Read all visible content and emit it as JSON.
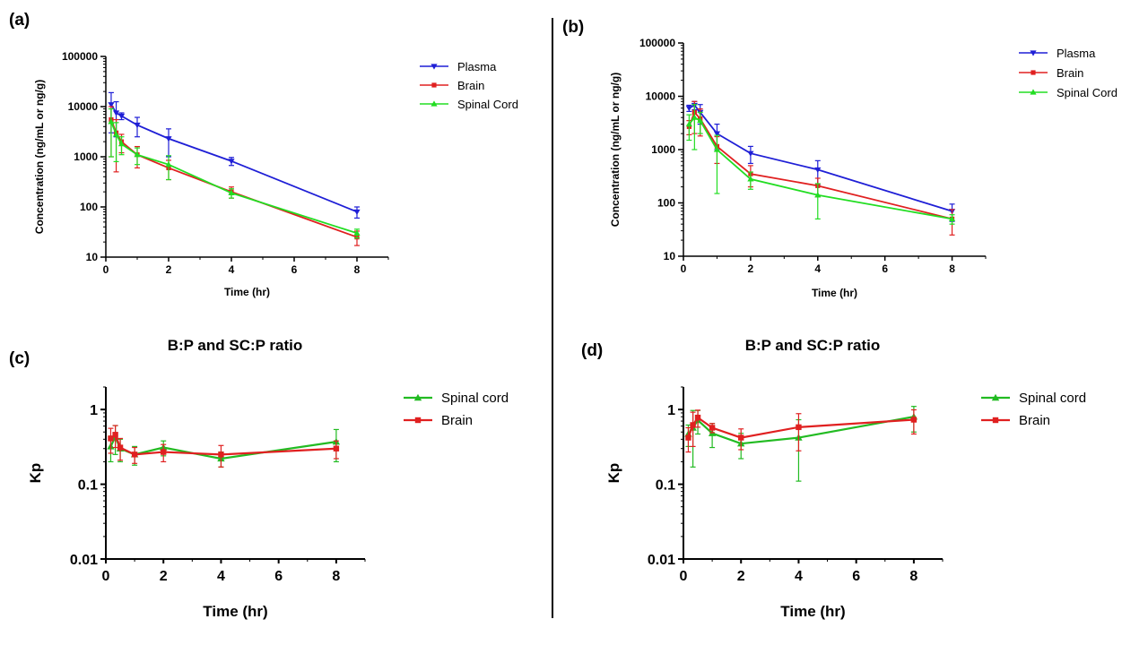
{
  "chart_data": [
    {
      "panel": "(a)",
      "type": "line",
      "title": "",
      "xlabel": "Time (hr)",
      "ylabel": "Concentration (ng/mL or ng/g)",
      "yscale": "log",
      "xlim": [
        0,
        9
      ],
      "ylim": [
        10,
        100000
      ],
      "xticks": [
        "0",
        "2",
        "4",
        "6",
        "8"
      ],
      "yticks": [
        "10",
        "100",
        "1000",
        "10000",
        "100000"
      ],
      "legend_position": "top-right",
      "series": [
        {
          "name": "Plasma",
          "color": "#1f1fd6",
          "marker": "triangle-down",
          "x": [
            0.17,
            0.33,
            0.5,
            1,
            2,
            4,
            8
          ],
          "y": [
            11000,
            7500,
            6500,
            4300,
            2300,
            820,
            80
          ],
          "err": [
            8000,
            5000,
            1000,
            1800,
            1300,
            150,
            20
          ]
        },
        {
          "name": "Brain",
          "color": "#e02020",
          "marker": "square",
          "x": [
            0.17,
            0.33,
            0.5,
            1,
            2,
            4,
            8
          ],
          "y": [
            5500,
            3000,
            2000,
            1100,
            600,
            200,
            25
          ],
          "err": [
            4500,
            2500,
            800,
            500,
            250,
            50,
            8
          ]
        },
        {
          "name": "Spinal Cord",
          "color": "#22dd22",
          "marker": "triangle-up",
          "x": [
            0.17,
            0.33,
            0.5,
            1,
            2,
            4,
            8
          ],
          "y": [
            5000,
            2800,
            1800,
            1100,
            700,
            190,
            30
          ],
          "err": [
            4000,
            2000,
            700,
            400,
            350,
            40,
            6
          ]
        }
      ]
    },
    {
      "panel": "(b)",
      "type": "line",
      "title": "",
      "xlabel": "Time (hr)",
      "ylabel": "Concentration (ng/mL or ng/g)",
      "yscale": "log",
      "xlim": [
        0,
        9
      ],
      "ylim": [
        10,
        100000
      ],
      "xticks": [
        "0",
        "2",
        "4",
        "6",
        "8"
      ],
      "yticks": [
        "10",
        "100",
        "1000",
        "10000",
        "100000"
      ],
      "legend_position": "top-right",
      "series": [
        {
          "name": "Plasma",
          "color": "#1f1fd6",
          "marker": "triangle-down",
          "x": [
            0.17,
            0.33,
            0.5,
            1,
            2,
            4,
            8
          ],
          "y": [
            6000,
            6800,
            5000,
            2000,
            850,
            420,
            70
          ],
          "err": [
            800,
            1200,
            2000,
            1000,
            300,
            200,
            25
          ]
        },
        {
          "name": "Brain",
          "color": "#e02020",
          "marker": "square",
          "x": [
            0.17,
            0.33,
            0.5,
            1,
            2,
            4,
            8
          ],
          "y": [
            2700,
            5000,
            3800,
            1150,
            350,
            210,
            50
          ],
          "err": [
            800,
            3000,
            2000,
            600,
            150,
            80,
            25
          ]
        },
        {
          "name": "Spinal Cord",
          "color": "#22dd22",
          "marker": "triangle-up",
          "x": [
            0.17,
            0.33,
            0.5,
            1,
            2,
            4,
            8
          ],
          "y": [
            3000,
            4000,
            3500,
            1000,
            280,
            140,
            50
          ],
          "err": [
            1500,
            3000,
            1500,
            850,
            100,
            90,
            10
          ]
        }
      ]
    },
    {
      "panel": "(c)",
      "type": "line",
      "title": "B:P and SC:P ratio",
      "xlabel": "Time (hr)",
      "ylabel": "Kp",
      "yscale": "log",
      "xlim": [
        0,
        9
      ],
      "ylim": [
        0.01,
        2
      ],
      "xticks": [
        "0",
        "2",
        "4",
        "6",
        "8"
      ],
      "yticks": [
        "0.01",
        "0.1",
        "1"
      ],
      "legend_position": "top-right",
      "series": [
        {
          "name": "Spinal cord",
          "color": "#22bb22",
          "marker": "triangle-up",
          "x": [
            0.17,
            0.33,
            0.5,
            1,
            2,
            4,
            8
          ],
          "y": [
            0.32,
            0.43,
            0.3,
            0.25,
            0.31,
            0.22,
            0.37
          ],
          "err": [
            0.12,
            0.18,
            0.1,
            0.07,
            0.07,
            0.05,
            0.17
          ]
        },
        {
          "name": "Brain",
          "color": "#e02020",
          "marker": "square",
          "x": [
            0.17,
            0.33,
            0.5,
            1,
            2,
            4,
            8
          ],
          "y": [
            0.41,
            0.46,
            0.31,
            0.25,
            0.27,
            0.25,
            0.3
          ],
          "err": [
            0.15,
            0.15,
            0.1,
            0.06,
            0.07,
            0.08,
            0.08
          ]
        }
      ]
    },
    {
      "panel": "(d)",
      "type": "line",
      "title": "B:P and SC:P ratio",
      "xlabel": "Time (hr)",
      "ylabel": "Kp",
      "yscale": "log",
      "xlim": [
        0,
        9
      ],
      "ylim": [
        0.01,
        2
      ],
      "xticks": [
        "0",
        "2",
        "4",
        "6",
        "8"
      ],
      "yticks": [
        "0.01",
        "0.1",
        "1"
      ],
      "legend_position": "top-right",
      "series": [
        {
          "name": "Spinal cord",
          "color": "#22bb22",
          "marker": "triangle-up",
          "x": [
            0.17,
            0.33,
            0.5,
            1,
            2,
            4,
            8
          ],
          "y": [
            0.47,
            0.57,
            0.72,
            0.48,
            0.35,
            0.42,
            0.8
          ],
          "err": [
            0.15,
            0.4,
            0.25,
            0.17,
            0.13,
            0.31,
            0.3
          ]
        },
        {
          "name": "Brain",
          "color": "#e02020",
          "marker": "square",
          "x": [
            0.17,
            0.33,
            0.5,
            1,
            2,
            4,
            8
          ],
          "y": [
            0.42,
            0.62,
            0.78,
            0.57,
            0.42,
            0.58,
            0.73
          ],
          "err": [
            0.15,
            0.3,
            0.2,
            0.08,
            0.13,
            0.3,
            0.26
          ]
        }
      ]
    }
  ]
}
